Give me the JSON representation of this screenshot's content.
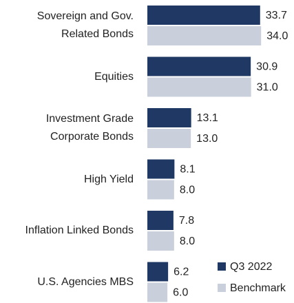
{
  "chart_data": {
    "type": "barh",
    "categories": [
      "Sovereign and Gov.\nRelated Bonds",
      "Equities",
      "Investment Grade\nCorporate Bonds",
      "High Yield",
      "Inflation Linked Bonds",
      "U.S. Agencies MBS"
    ],
    "series": [
      {
        "name": "Q3 2022",
        "color": "#203864",
        "values": [
          33.7,
          30.9,
          13.1,
          8.1,
          7.8,
          6.2
        ],
        "value_labels": [
          "33.7",
          "30.9",
          "13.1",
          "8.1",
          "7.8",
          "6.2"
        ]
      },
      {
        "name": "Benchmark",
        "color": "#c9d0dc",
        "values": [
          34.0,
          31.0,
          13.0,
          8.0,
          8.0,
          6.0
        ],
        "value_labels": [
          "34.0",
          "31.0",
          "13.0",
          "8.0",
          "8.0",
          "6.0"
        ]
      }
    ]
  }
}
